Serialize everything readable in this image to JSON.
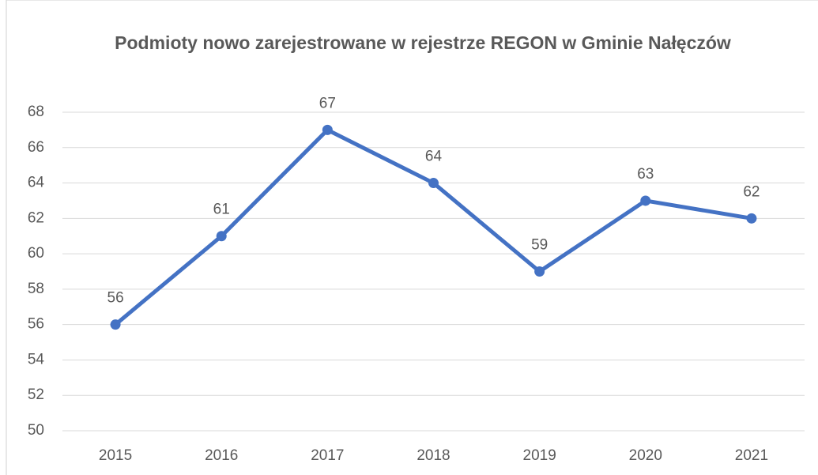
{
  "chart_data": {
    "type": "line",
    "title": "Podmioty nowo zarejestrowane w rejestrze REGON w Gminie Nałęczów",
    "categories": [
      "2015",
      "2016",
      "2017",
      "2018",
      "2019",
      "2020",
      "2021"
    ],
    "series": [
      {
        "name": "Podmioty",
        "color": "#4472c4",
        "values": [
          56,
          61,
          67,
          64,
          59,
          63,
          62
        ]
      }
    ],
    "ylim": [
      50,
      68
    ],
    "yticks": [
      50,
      52,
      54,
      56,
      58,
      60,
      62,
      64,
      66,
      68
    ],
    "grid": true,
    "data_labels": true
  }
}
